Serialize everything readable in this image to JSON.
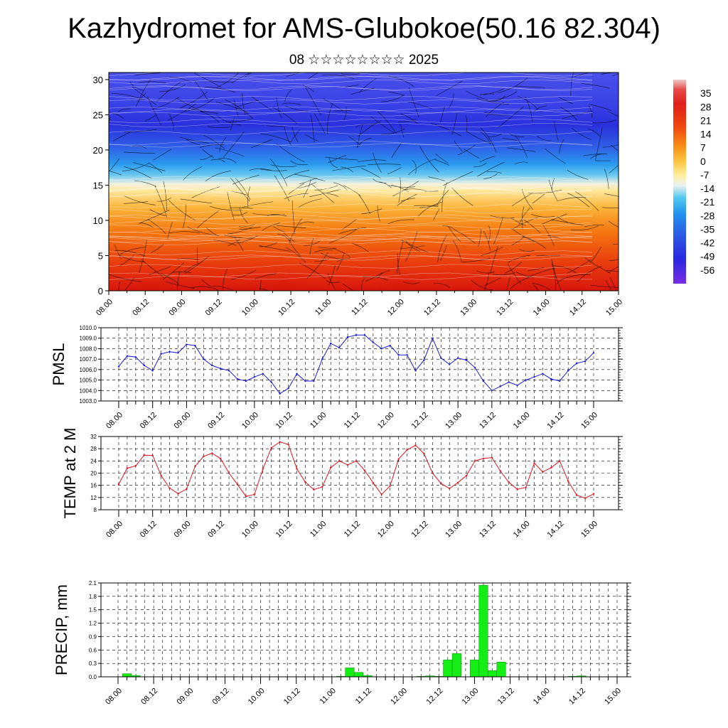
{
  "title": "Kazhydromet for AMS-Glubokoe(50.16 82.304)",
  "subtitle": "08 ☆☆☆☆☆☆☆☆ 2025",
  "time_labels": [
    "08.00",
    "08.12",
    "09.00",
    "09.12",
    "10.00",
    "10.12",
    "11.00",
    "11.12",
    "12.00",
    "12.12",
    "13.00",
    "13.12",
    "14.00",
    "14.12",
    "15.00"
  ],
  "colors": {
    "pmsl_line": "#1a1adc",
    "temp_line": "#e0141e",
    "precip_bar": "#14ee14",
    "colorbar_top": "#f0c8c8",
    "colorbar_bottom": "#7a2ce6"
  },
  "chart_data": [
    {
      "type": "heatmap",
      "name": "",
      "ylabel": "",
      "ylim": [
        0,
        31
      ],
      "yticks": [
        0,
        5,
        10,
        15,
        20,
        25,
        30
      ],
      "ytick_labels": [
        "0",
        "5",
        "10",
        "15",
        "20",
        "25",
        "30"
      ],
      "x": [
        0,
        6,
        12,
        18,
        24,
        30,
        36,
        42,
        48,
        54,
        60,
        66,
        72,
        78,
        84,
        90,
        96,
        102,
        108,
        114,
        120,
        126,
        132,
        138,
        144,
        150,
        156,
        162,
        168
      ],
      "colorbar": {
        "labels": [
          "35",
          "28",
          "21",
          "14",
          "7",
          "0",
          "-7",
          "-14",
          "-21",
          "-28",
          "-35",
          "-42",
          "-49",
          "-56"
        ],
        "values": [
          35,
          28,
          21,
          14,
          7,
          0,
          -7,
          -14,
          -21,
          -28,
          -35,
          -42,
          -49,
          -56
        ],
        "range": [
          -63,
          42
        ]
      },
      "grid": false
    },
    {
      "type": "line",
      "ylabel": "PMSL",
      "ylim": [
        1003,
        1010
      ],
      "ytick_labels": [
        "1010.0",
        "1009.0",
        "1008.0",
        "1007.0",
        "1006.0",
        "1005.0",
        "1004.0",
        "1003.0"
      ],
      "yticks": [
        1010,
        1009,
        1008,
        1007,
        1006,
        1005,
        1004,
        1003
      ],
      "x": [
        0,
        3,
        6,
        9,
        12,
        15,
        18,
        21,
        24,
        27,
        30,
        33,
        36,
        39,
        42,
        45,
        48,
        51,
        54,
        57,
        60,
        63,
        66,
        69,
        72,
        75,
        78,
        81,
        84,
        87,
        90,
        93,
        96,
        99,
        102,
        105,
        108,
        111,
        114,
        117,
        120,
        123,
        126,
        129,
        132,
        135,
        138,
        141,
        144,
        147,
        150,
        153,
        156,
        159,
        162,
        165,
        168
      ],
      "series": [
        {
          "values": [
            1006.3,
            1007.3,
            1007.2,
            1006.4,
            1005.9,
            1007.5,
            1007.7,
            1007.6,
            1008.4,
            1008.3,
            1007.0,
            1006.4,
            1006.1,
            1005.9,
            1005.1,
            1004.9,
            1005.3,
            1005.6,
            1004.8,
            1003.7,
            1004.2,
            1005.6,
            1004.9,
            1004.9,
            1007.0,
            1008.5,
            1008.1,
            1009.1,
            1009.3,
            1009.3,
            1008.6,
            1008.0,
            1008.3,
            1007.4,
            1007.4,
            1005.9,
            1006.9,
            1009.0,
            1007.1,
            1006.5,
            1007.1,
            1006.9,
            1006.2,
            1004.9,
            1004.0,
            1004.4,
            1004.8,
            1004.5,
            1005.0,
            1005.3,
            1005.6,
            1005.1,
            1004.9,
            1005.9,
            1006.6,
            1006.8,
            1007.6
          ]
        }
      ],
      "grid": true
    },
    {
      "type": "line",
      "ylabel": "TEMP at 2 M",
      "ylim": [
        8,
        32
      ],
      "yticks": [
        8,
        12,
        16,
        20,
        24,
        28,
        32
      ],
      "ytick_labels": [
        "8",
        "12",
        "16",
        "20",
        "24",
        "28",
        "32"
      ],
      "x": [
        0,
        3,
        6,
        9,
        12,
        15,
        18,
        21,
        24,
        27,
        30,
        33,
        36,
        39,
        42,
        45,
        48,
        51,
        54,
        57,
        60,
        63,
        66,
        69,
        72,
        75,
        78,
        81,
        84,
        87,
        90,
        93,
        96,
        99,
        102,
        105,
        108,
        111,
        114,
        117,
        120,
        123,
        126,
        129,
        132,
        135,
        138,
        141,
        144,
        147,
        150,
        153,
        156,
        159,
        162,
        165,
        168
      ],
      "series": [
        {
          "values": [
            16.4,
            21.6,
            22.4,
            25.9,
            25.8,
            19.2,
            15.1,
            13.3,
            14.8,
            22.2,
            25.5,
            26.5,
            24.8,
            20.0,
            16.3,
            12.4,
            13.0,
            21.4,
            28.3,
            30.2,
            29.4,
            21.4,
            17.1,
            14.6,
            15.5,
            21.8,
            24.0,
            22.7,
            24.0,
            20.9,
            16.8,
            13.0,
            15.8,
            24.6,
            27.6,
            29.1,
            26.4,
            20.0,
            16.6,
            15.0,
            16.9,
            19.2,
            24.0,
            24.8,
            25.1,
            20.7,
            17.0,
            14.7,
            15.3,
            23.3,
            20.4,
            21.8,
            24.0,
            17.4,
            12.8,
            11.8,
            13.2
          ]
        }
      ],
      "grid": true
    },
    {
      "type": "bar",
      "ylabel": "PRECIP, mm",
      "ylim": [
        0,
        2.1
      ],
      "yticks": [
        0,
        0.3,
        0.6,
        0.9,
        1.2,
        1.5,
        1.8,
        2.1
      ],
      "ytick_labels": [
        "0.0",
        "0.3",
        "0.6",
        "0.9",
        "1.2",
        "1.5",
        "1.8",
        "2.1"
      ],
      "x": [
        0,
        3,
        6,
        9,
        12,
        15,
        18,
        21,
        24,
        27,
        30,
        33,
        36,
        39,
        42,
        45,
        48,
        51,
        54,
        57,
        60,
        63,
        66,
        69,
        72,
        75,
        78,
        81,
        84,
        87,
        90,
        93,
        96,
        99,
        102,
        105,
        108,
        111,
        114,
        117,
        120,
        123,
        126,
        129,
        132,
        135,
        138,
        141,
        144,
        147,
        150,
        153,
        156,
        159,
        162,
        165,
        168
      ],
      "series": [
        {
          "values": [
            0,
            0.07,
            0.03,
            0,
            0,
            0,
            0,
            0,
            0,
            0,
            0,
            0,
            0,
            0,
            0,
            0,
            0,
            0,
            0,
            0,
            0,
            0,
            0,
            0,
            0,
            0.01,
            0.2,
            0.1,
            0.03,
            0,
            0,
            0,
            0,
            0,
            0.01,
            0.02,
            0.01,
            0.38,
            0.52,
            0,
            0.38,
            2.05,
            0.14,
            0.33,
            0,
            0,
            0,
            0,
            0,
            0,
            0,
            0.01,
            0.02,
            0,
            0,
            0,
            0
          ]
        }
      ],
      "grid": true
    }
  ]
}
